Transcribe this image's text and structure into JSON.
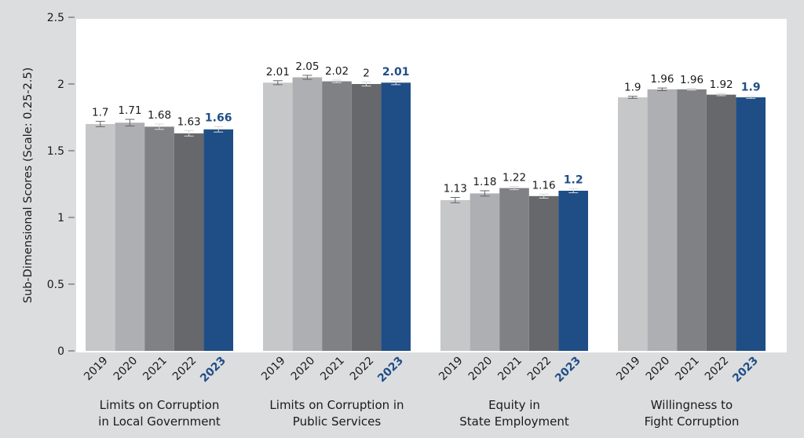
{
  "chart_data": {
    "type": "bar",
    "title": "",
    "xlabel": "",
    "ylabel": "Sub-Dimensional Scores (Scale: 0.25-2.5)",
    "ylim": [
      0,
      2.5
    ],
    "yticks": [
      "0",
      "0.5",
      "1",
      "1.5",
      "2",
      "2.5"
    ],
    "ytick_values": [
      0,
      0.5,
      1,
      1.5,
      2,
      2.5
    ],
    "grid": false,
    "legend": "none",
    "years": [
      "2019",
      "2020",
      "2021",
      "2022",
      "2023"
    ],
    "highlight_year": "2023",
    "categories": [
      {
        "label_lines": [
          "Limits on Corruption",
          "in Local Government"
        ],
        "values": [
          1.7,
          1.71,
          1.68,
          1.63,
          1.66
        ],
        "labels": [
          "1.7",
          "1.71",
          "1.68",
          "1.63",
          "1.66"
        ],
        "err": [
          0.02,
          0.025,
          0.02,
          0.02,
          0.02
        ]
      },
      {
        "label_lines": [
          "Limits on Corruption in",
          "Public Services"
        ],
        "values": [
          2.01,
          2.05,
          2.02,
          2.0,
          2.01
        ],
        "labels": [
          "2.01",
          "2.05",
          "2.02",
          "2",
          "2.01"
        ],
        "err": [
          0.015,
          0.015,
          0.01,
          0.015,
          0.015
        ]
      },
      {
        "label_lines": [
          "Equity in",
          "State Employment"
        ],
        "values": [
          1.13,
          1.18,
          1.22,
          1.16,
          1.2
        ],
        "labels": [
          "1.13",
          "1.18",
          "1.22",
          "1.16",
          "1.2"
        ],
        "err": [
          0.02,
          0.02,
          0.012,
          0.015,
          0.015
        ]
      },
      {
        "label_lines": [
          "Willingness to",
          "Fight Corruption"
        ],
        "values": [
          1.9,
          1.96,
          1.96,
          1.92,
          1.9
        ],
        "labels": [
          "1.9",
          "1.96",
          "1.96",
          "1.92",
          "1.9"
        ],
        "err": [
          0.008,
          0.01,
          0.006,
          0.008,
          0.008
        ]
      }
    ],
    "series_colors": [
      "#c6c7c9",
      "#aeafb2",
      "#808185",
      "#67686c",
      "#1f4e87"
    ]
  }
}
